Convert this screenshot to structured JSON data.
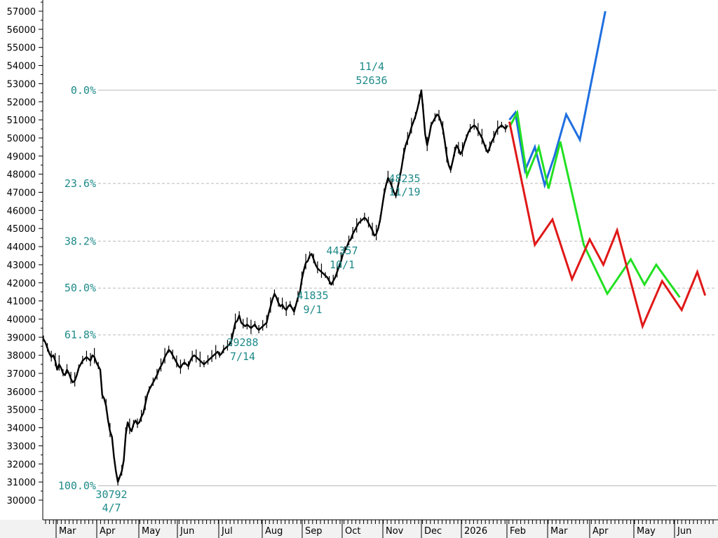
{
  "chart_data": {
    "type": "line",
    "title": "",
    "xlabel": "",
    "ylabel": "",
    "ylim": [
      29000,
      57500
    ],
    "y_ticks": [
      30000,
      31000,
      32000,
      33000,
      34000,
      35000,
      36000,
      37000,
      38000,
      39000,
      40000,
      41000,
      42000,
      43000,
      44000,
      45000,
      46000,
      47000,
      48000,
      49000,
      50000,
      51000,
      52000,
      53000,
      54000,
      55000,
      56000,
      57000
    ],
    "x_tick_labels": [
      "Mar",
      "Apr",
      "May",
      "Jun",
      "Jul",
      "Aug",
      "Sep",
      "Oct",
      "Nov",
      "Dec",
      "2026",
      "Feb",
      "Mar",
      "Apr",
      "May",
      "Jun"
    ],
    "grid": false,
    "fib_levels": [
      {
        "label": "0.0%",
        "value": 52636
      },
      {
        "label": "23.6%",
        "value": 47490
      },
      {
        "label": "38.2%",
        "value": 44300
      },
      {
        "label": "50.0%",
        "value": 41710
      },
      {
        "label": "61.8%",
        "value": 39130
      },
      {
        "label": "100.0%",
        "value": 30792
      }
    ],
    "annotations": [
      {
        "date": "11/4",
        "value": "52636"
      },
      {
        "date": "11/19",
        "value": "48235"
      },
      {
        "date": "10/1",
        "value": "44357"
      },
      {
        "date": "9/1",
        "value": "41835"
      },
      {
        "date": "7/14",
        "value": "39288"
      },
      {
        "date": "4/7",
        "value": "30792"
      }
    ],
    "price_path": [
      [
        0,
        38900
      ],
      [
        2,
        38700
      ],
      [
        4,
        38400
      ],
      [
        6,
        38100
      ],
      [
        8,
        37900
      ],
      [
        10,
        38000
      ],
      [
        12,
        37700
      ],
      [
        14,
        37200
      ],
      [
        16,
        37500
      ],
      [
        18,
        37300
      ],
      [
        20,
        37000
      ],
      [
        22,
        36900
      ],
      [
        24,
        37200
      ],
      [
        26,
        37000
      ],
      [
        28,
        36700
      ],
      [
        30,
        36500
      ],
      [
        32,
        36600
      ],
      [
        34,
        36900
      ],
      [
        36,
        37300
      ],
      [
        38,
        37500
      ],
      [
        40,
        37700
      ],
      [
        42,
        37800
      ],
      [
        44,
        37900
      ],
      [
        46,
        37800
      ],
      [
        48,
        37700
      ],
      [
        50,
        38000
      ],
      [
        52,
        37900
      ],
      [
        54,
        37600
      ],
      [
        56,
        37400
      ],
      [
        58,
        37200
      ],
      [
        60,
        35800
      ],
      [
        62,
        35600
      ],
      [
        64,
        35200
      ],
      [
        66,
        34400
      ],
      [
        68,
        33800
      ],
      [
        70,
        33500
      ],
      [
        72,
        32400
      ],
      [
        74,
        31600
      ],
      [
        76,
        31000
      ],
      [
        78,
        31300
      ],
      [
        80,
        31600
      ],
      [
        82,
        32200
      ],
      [
        84,
        33600
      ],
      [
        86,
        34300
      ],
      [
        88,
        34000
      ],
      [
        90,
        33800
      ],
      [
        92,
        34200
      ],
      [
        94,
        34400
      ],
      [
        96,
        34200
      ],
      [
        98,
        34300
      ],
      [
        100,
        34600
      ],
      [
        102,
        34800
      ],
      [
        104,
        35300
      ],
      [
        106,
        35800
      ],
      [
        108,
        36100
      ],
      [
        110,
        36300
      ],
      [
        112,
        36500
      ],
      [
        114,
        36700
      ],
      [
        116,
        36900
      ],
      [
        118,
        37200
      ],
      [
        120,
        37400
      ],
      [
        122,
        37600
      ],
      [
        124,
        37900
      ],
      [
        126,
        38100
      ],
      [
        128,
        38300
      ],
      [
        130,
        38200
      ],
      [
        132,
        38000
      ],
      [
        134,
        37800
      ],
      [
        136,
        37600
      ],
      [
        138,
        37400
      ],
      [
        140,
        37300
      ],
      [
        142,
        37500
      ],
      [
        144,
        37600
      ],
      [
        146,
        37500
      ],
      [
        148,
        37400
      ],
      [
        150,
        37700
      ],
      [
        152,
        37900
      ],
      [
        154,
        38000
      ],
      [
        156,
        37900
      ],
      [
        158,
        37800
      ],
      [
        160,
        37700
      ],
      [
        162,
        37600
      ],
      [
        164,
        37500
      ],
      [
        166,
        37600
      ],
      [
        168,
        37700
      ],
      [
        170,
        37800
      ],
      [
        172,
        37900
      ],
      [
        174,
        38000
      ],
      [
        176,
        38100
      ],
      [
        178,
        38200
      ],
      [
        180,
        38000
      ],
      [
        182,
        38100
      ],
      [
        184,
        38300
      ],
      [
        186,
        38400
      ],
      [
        188,
        38500
      ],
      [
        190,
        38600
      ],
      [
        192,
        38800
      ],
      [
        194,
        39300
      ],
      [
        196,
        39800
      ],
      [
        198,
        39900
      ],
      [
        200,
        40200
      ],
      [
        202,
        39800
      ],
      [
        204,
        39700
      ],
      [
        206,
        39600
      ],
      [
        208,
        39700
      ],
      [
        210,
        39600
      ],
      [
        212,
        39500
      ],
      [
        214,
        39600
      ],
      [
        216,
        39700
      ],
      [
        218,
        39500
      ],
      [
        220,
        39400
      ],
      [
        222,
        39500
      ],
      [
        224,
        39600
      ],
      [
        226,
        39700
      ],
      [
        228,
        39800
      ],
      [
        230,
        40300
      ],
      [
        232,
        40700
      ],
      [
        234,
        41100
      ],
      [
        236,
        41400
      ],
      [
        238,
        41200
      ],
      [
        240,
        40900
      ],
      [
        242,
        40700
      ],
      [
        244,
        40800
      ],
      [
        246,
        40600
      ],
      [
        248,
        40500
      ],
      [
        250,
        40700
      ],
      [
        252,
        40800
      ],
      [
        254,
        40600
      ],
      [
        256,
        40400
      ],
      [
        258,
        40800
      ],
      [
        260,
        41200
      ],
      [
        262,
        41500
      ],
      [
        264,
        42200
      ],
      [
        266,
        42700
      ],
      [
        268,
        43100
      ],
      [
        270,
        43200
      ],
      [
        272,
        43500
      ],
      [
        274,
        43600
      ],
      [
        276,
        43300
      ],
      [
        278,
        43000
      ],
      [
        280,
        42800
      ],
      [
        282,
        42700
      ],
      [
        284,
        42600
      ],
      [
        286,
        42500
      ],
      [
        288,
        42400
      ],
      [
        290,
        42300
      ],
      [
        292,
        42100
      ],
      [
        294,
        41900
      ],
      [
        296,
        42100
      ],
      [
        298,
        42300
      ],
      [
        300,
        42600
      ],
      [
        302,
        42900
      ],
      [
        304,
        43200
      ],
      [
        306,
        43600
      ],
      [
        308,
        43800
      ],
      [
        310,
        44000
      ],
      [
        312,
        44300
      ],
      [
        314,
        44400
      ],
      [
        316,
        44700
      ],
      [
        318,
        44900
      ],
      [
        320,
        45100
      ],
      [
        322,
        45300
      ],
      [
        324,
        45400
      ],
      [
        326,
        45500
      ],
      [
        328,
        45600
      ],
      [
        330,
        45500
      ],
      [
        332,
        45300
      ],
      [
        334,
        45100
      ],
      [
        336,
        44900
      ],
      [
        338,
        44600
      ],
      [
        340,
        44700
      ],
      [
        342,
        45000
      ],
      [
        344,
        45500
      ],
      [
        346,
        46200
      ],
      [
        348,
        46900
      ],
      [
        350,
        47400
      ],
      [
        352,
        47800
      ],
      [
        354,
        47600
      ],
      [
        356,
        47300
      ],
      [
        358,
        47000
      ],
      [
        360,
        46800
      ],
      [
        362,
        47300
      ],
      [
        364,
        47800
      ],
      [
        366,
        48400
      ],
      [
        368,
        49100
      ],
      [
        370,
        49600
      ],
      [
        372,
        49900
      ],
      [
        374,
        50200
      ],
      [
        376,
        50600
      ],
      [
        378,
        50900
      ],
      [
        380,
        51200
      ],
      [
        382,
        51600
      ],
      [
        384,
        52100
      ],
      [
        386,
        52636
      ],
      [
        388,
        51500
      ],
      [
        390,
        50200
      ],
      [
        392,
        49600
      ],
      [
        394,
        50100
      ],
      [
        396,
        50700
      ],
      [
        398,
        50900
      ],
      [
        400,
        51100
      ],
      [
        402,
        51300
      ],
      [
        404,
        51200
      ],
      [
        406,
        50900
      ],
      [
        408,
        50500
      ],
      [
        410,
        49800
      ],
      [
        412,
        49000
      ],
      [
        414,
        48500
      ],
      [
        416,
        48235
      ],
      [
        418,
        48700
      ],
      [
        420,
        49200
      ],
      [
        422,
        49600
      ],
      [
        424,
        49400
      ],
      [
        426,
        49100
      ],
      [
        428,
        49300
      ],
      [
        430,
        49700
      ],
      [
        432,
        50000
      ],
      [
        434,
        50300
      ],
      [
        436,
        50500
      ],
      [
        438,
        50600
      ],
      [
        440,
        50700
      ],
      [
        442,
        50600
      ],
      [
        444,
        50400
      ],
      [
        446,
        50200
      ],
      [
        448,
        50000
      ],
      [
        450,
        49700
      ],
      [
        452,
        49400
      ],
      [
        454,
        49200
      ],
      [
        456,
        49500
      ],
      [
        458,
        49800
      ],
      [
        460,
        50000
      ],
      [
        462,
        50300
      ],
      [
        464,
        50500
      ],
      [
        466,
        50600
      ],
      [
        468,
        50700
      ],
      [
        470,
        50600
      ],
      [
        472,
        50500
      ],
      [
        474,
        50700
      ]
    ],
    "series": [
      {
        "color": "#1f6fe0",
        "x": [
          476,
          482,
          492,
          502,
          512,
          522,
          534,
          548,
          574
        ],
        "values": [
          51000,
          51400,
          48200,
          49500,
          47400,
          49000,
          51300,
          49900,
          57000
        ]
      },
      {
        "color": "#22e022",
        "x": [
          476,
          484,
          494,
          506,
          516,
          528,
          552,
          576,
          600,
          614,
          626,
          650
        ],
        "values": [
          50600,
          51400,
          47900,
          49500,
          47200,
          49800,
          44100,
          41400,
          43300,
          41900,
          43000,
          41200
        ]
      },
      {
        "color": "#e01818",
        "x": [
          476,
          502,
          520,
          540,
          558,
          572,
          586,
          612,
          632,
          652,
          668,
          676
        ],
        "values": [
          50900,
          44100,
          45500,
          42200,
          44400,
          43000,
          44900,
          39600,
          42100,
          40500,
          42600,
          41300
        ]
      }
    ]
  }
}
